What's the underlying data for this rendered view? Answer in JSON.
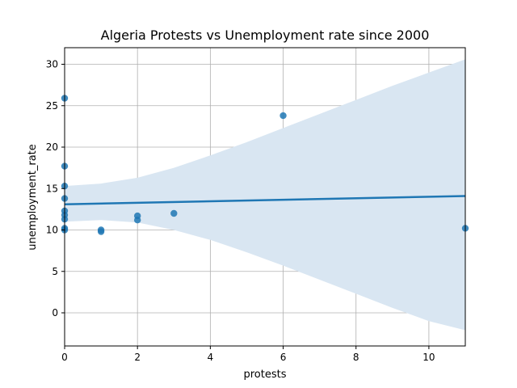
{
  "chart_data": {
    "type": "scatter",
    "title": "Algeria Protests vs Unemployment rate since 2000",
    "xlabel": "protests",
    "ylabel": "unemployment_rate",
    "xlim": [
      0,
      11
    ],
    "ylim": [
      -4,
      32
    ],
    "x_ticks": [
      0,
      2,
      4,
      6,
      8,
      10
    ],
    "y_ticks": [
      0,
      5,
      10,
      15,
      20,
      25,
      30
    ],
    "grid": true,
    "points": [
      {
        "x": 0,
        "y": 25.9
      },
      {
        "x": 0,
        "y": 17.7
      },
      {
        "x": 0,
        "y": 15.3
      },
      {
        "x": 0,
        "y": 13.8
      },
      {
        "x": 0,
        "y": 12.3
      },
      {
        "x": 0,
        "y": 11.8
      },
      {
        "x": 0,
        "y": 11.3
      },
      {
        "x": 0,
        "y": 10.2
      },
      {
        "x": 0,
        "y": 10.0
      },
      {
        "x": 1,
        "y": 10.0
      },
      {
        "x": 1,
        "y": 9.8
      },
      {
        "x": 2,
        "y": 11.7
      },
      {
        "x": 2,
        "y": 11.2
      },
      {
        "x": 3,
        "y": 12.0
      },
      {
        "x": 6,
        "y": 23.8
      },
      {
        "x": 11,
        "y": 10.2
      }
    ],
    "regression": {
      "x": [
        0,
        11
      ],
      "y": [
        13.1,
        14.1
      ]
    },
    "confidence_band": {
      "x": [
        0,
        1,
        2,
        3,
        4,
        5,
        6,
        7,
        8,
        9,
        10,
        11
      ],
      "upper": [
        15.3,
        15.6,
        16.3,
        17.5,
        19.0,
        20.6,
        22.3,
        24.0,
        25.7,
        27.4,
        29.0,
        30.6
      ],
      "lower": [
        11.0,
        11.2,
        10.9,
        10.0,
        8.8,
        7.3,
        5.7,
        4.0,
        2.3,
        0.6,
        -1.0,
        -2.1
      ]
    },
    "colors": {
      "points": "#1f77b4",
      "line": "#1f77b4",
      "band": "#d9e6f2",
      "grid": "#b0b0b0"
    }
  }
}
